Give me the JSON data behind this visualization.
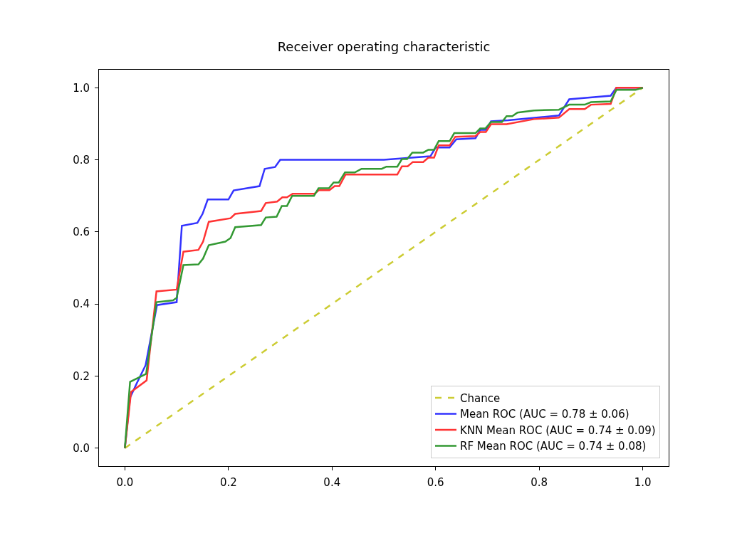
{
  "chart_data": {
    "type": "line",
    "title": "Receiver operating characteristic",
    "xlim": [
      -0.05,
      1.05
    ],
    "ylim": [
      -0.05,
      1.05
    ],
    "xticks": [
      {
        "value": 0,
        "label": "0.0"
      },
      {
        "value": 0.2,
        "label": "0.2"
      },
      {
        "value": 0.4,
        "label": "0.4"
      },
      {
        "value": 0.6,
        "label": "0.6"
      },
      {
        "value": 0.8,
        "label": "0.8"
      },
      {
        "value": 1,
        "label": "1.0"
      }
    ],
    "yticks": [
      {
        "value": 0,
        "label": "0.0"
      },
      {
        "value": 0.2,
        "label": "0.2"
      },
      {
        "value": 0.4,
        "label": "0.4"
      },
      {
        "value": 0.6,
        "label": "0.6"
      },
      {
        "value": 0.8,
        "label": "0.8"
      },
      {
        "value": 1,
        "label": "1.0"
      }
    ],
    "legend": "bottom right",
    "grid": false,
    "marker": "none",
    "series": [
      {
        "name": "Chance",
        "color": "#cccc33",
        "line_style": "dashed",
        "x": [
          0,
          1
        ],
        "values": [
          0,
          1
        ]
      },
      {
        "name": "Mean ROC (AUC = 0.78 ± 0.06)",
        "color": "#3333ff",
        "line_style": "solid",
        "x": [
          0,
          0.01,
          0.023,
          0.04,
          0.062,
          0.1,
          0.11,
          0.14,
          0.15,
          0.16,
          0.2,
          0.21,
          0.26,
          0.27,
          0.29,
          0.3,
          0.5,
          0.59,
          0.6,
          0.627,
          0.64,
          0.677,
          0.686,
          0.697,
          0.707,
          0.74,
          0.838,
          0.858,
          0.938,
          0.949,
          1
        ],
        "values": [
          0,
          0.14,
          0.18,
          0.23,
          0.397,
          0.405,
          0.617,
          0.625,
          0.65,
          0.69,
          0.69,
          0.715,
          0.727,
          0.775,
          0.78,
          0.8,
          0.8,
          0.81,
          0.834,
          0.834,
          0.857,
          0.86,
          0.883,
          0.883,
          0.907,
          0.91,
          0.923,
          0.968,
          0.978,
          1,
          1
        ]
      },
      {
        "name": "KNN Mean ROC (AUC = 0.74 ± 0.09)",
        "color": "#ff3333",
        "line_style": "solid",
        "x": [
          0,
          0.012,
          0.042,
          0.061,
          0.1,
          0.113,
          0.142,
          0.151,
          0.162,
          0.204,
          0.213,
          0.263,
          0.272,
          0.294,
          0.304,
          0.313,
          0.324,
          0.366,
          0.375,
          0.395,
          0.405,
          0.414,
          0.426,
          0.526,
          0.535,
          0.546,
          0.556,
          0.576,
          0.586,
          0.597,
          0.606,
          0.627,
          0.638,
          0.677,
          0.686,
          0.697,
          0.707,
          0.737,
          0.79,
          0.838,
          0.858,
          0.888,
          0.9,
          0.938,
          0.949,
          1
        ],
        "values": [
          0,
          0.156,
          0.188,
          0.435,
          0.44,
          0.545,
          0.55,
          0.573,
          0.628,
          0.638,
          0.65,
          0.658,
          0.68,
          0.684,
          0.696,
          0.696,
          0.706,
          0.706,
          0.716,
          0.716,
          0.727,
          0.727,
          0.759,
          0.759,
          0.782,
          0.782,
          0.794,
          0.794,
          0.806,
          0.806,
          0.84,
          0.84,
          0.864,
          0.866,
          0.877,
          0.877,
          0.899,
          0.899,
          0.913,
          0.917,
          0.941,
          0.941,
          0.953,
          0.955,
          1,
          1
        ]
      },
      {
        "name": "RF Mean ROC (AUC = 0.74 ± 0.08)",
        "color": "#339933",
        "line_style": "solid",
        "x": [
          0,
          0.01,
          0.041,
          0.061,
          0.093,
          0.1,
          0.113,
          0.142,
          0.151,
          0.162,
          0.194,
          0.204,
          0.213,
          0.263,
          0.272,
          0.293,
          0.303,
          0.313,
          0.323,
          0.365,
          0.374,
          0.394,
          0.403,
          0.413,
          0.425,
          0.444,
          0.457,
          0.496,
          0.505,
          0.526,
          0.535,
          0.545,
          0.555,
          0.576,
          0.586,
          0.597,
          0.606,
          0.627,
          0.636,
          0.677,
          0.686,
          0.696,
          0.707,
          0.728,
          0.737,
          0.748,
          0.758,
          0.79,
          0.838,
          0.858,
          0.888,
          0.9,
          0.938,
          0.949,
          0.986,
          1
        ],
        "values": [
          0,
          0.184,
          0.206,
          0.405,
          0.41,
          0.417,
          0.508,
          0.51,
          0.526,
          0.563,
          0.573,
          0.583,
          0.613,
          0.619,
          0.64,
          0.642,
          0.672,
          0.672,
          0.7,
          0.7,
          0.721,
          0.721,
          0.737,
          0.737,
          0.765,
          0.765,
          0.775,
          0.775,
          0.781,
          0.781,
          0.802,
          0.802,
          0.82,
          0.82,
          0.828,
          0.828,
          0.852,
          0.852,
          0.874,
          0.874,
          0.887,
          0.887,
          0.905,
          0.905,
          0.921,
          0.921,
          0.931,
          0.937,
          0.939,
          0.953,
          0.953,
          0.96,
          0.962,
          0.994,
          0.994,
          1
        ]
      }
    ]
  }
}
